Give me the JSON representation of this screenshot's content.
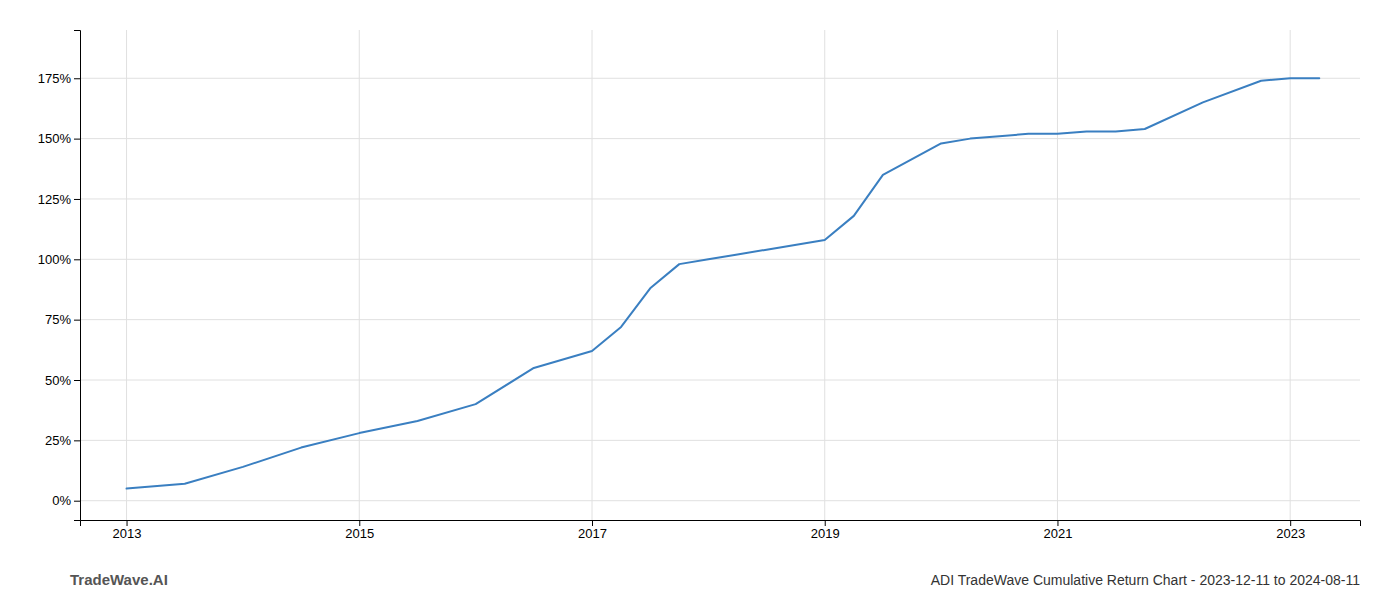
{
  "chart_data": {
    "type": "line",
    "title": "ADI TradeWave Cumulative Return Chart - 2023-12-11 to 2024-08-11",
    "annotations": [
      "TradeWave.AI"
    ],
    "x": [
      2013.0,
      2013.5,
      2014.0,
      2014.5,
      2015.0,
      2015.5,
      2016.0,
      2016.5,
      2017.0,
      2017.25,
      2017.5,
      2017.75,
      2018.0,
      2018.25,
      2018.5,
      2019.0,
      2019.25,
      2019.5,
      2020.0,
      2020.25,
      2020.5,
      2020.75,
      2021.0,
      2021.25,
      2021.5,
      2021.75,
      2022.25,
      2022.75,
      2023.0,
      2023.25
    ],
    "values": [
      5,
      7,
      14,
      22,
      28,
      33,
      40,
      55,
      62,
      72,
      88,
      98,
      100,
      102,
      104,
      108,
      118,
      135,
      148,
      150,
      151,
      152,
      152,
      153,
      153,
      154,
      165,
      174,
      175,
      175
    ],
    "color": "#3a7fc1",
    "xlim": [
      2012.6,
      2023.6
    ],
    "ylim": [
      -8,
      195
    ],
    "xticks": [
      2013,
      2015,
      2017,
      2019,
      2021,
      2023
    ],
    "yticks": [
      {
        "value": 0,
        "label": "0%"
      },
      {
        "value": 25,
        "label": "25%"
      },
      {
        "value": 50,
        "label": "50%"
      },
      {
        "value": 75,
        "label": "75%"
      },
      {
        "value": 100,
        "label": "100%"
      },
      {
        "value": 125,
        "label": "125%"
      },
      {
        "value": 150,
        "label": "150%"
      },
      {
        "value": 175,
        "label": "175%"
      }
    ],
    "grid": true
  }
}
